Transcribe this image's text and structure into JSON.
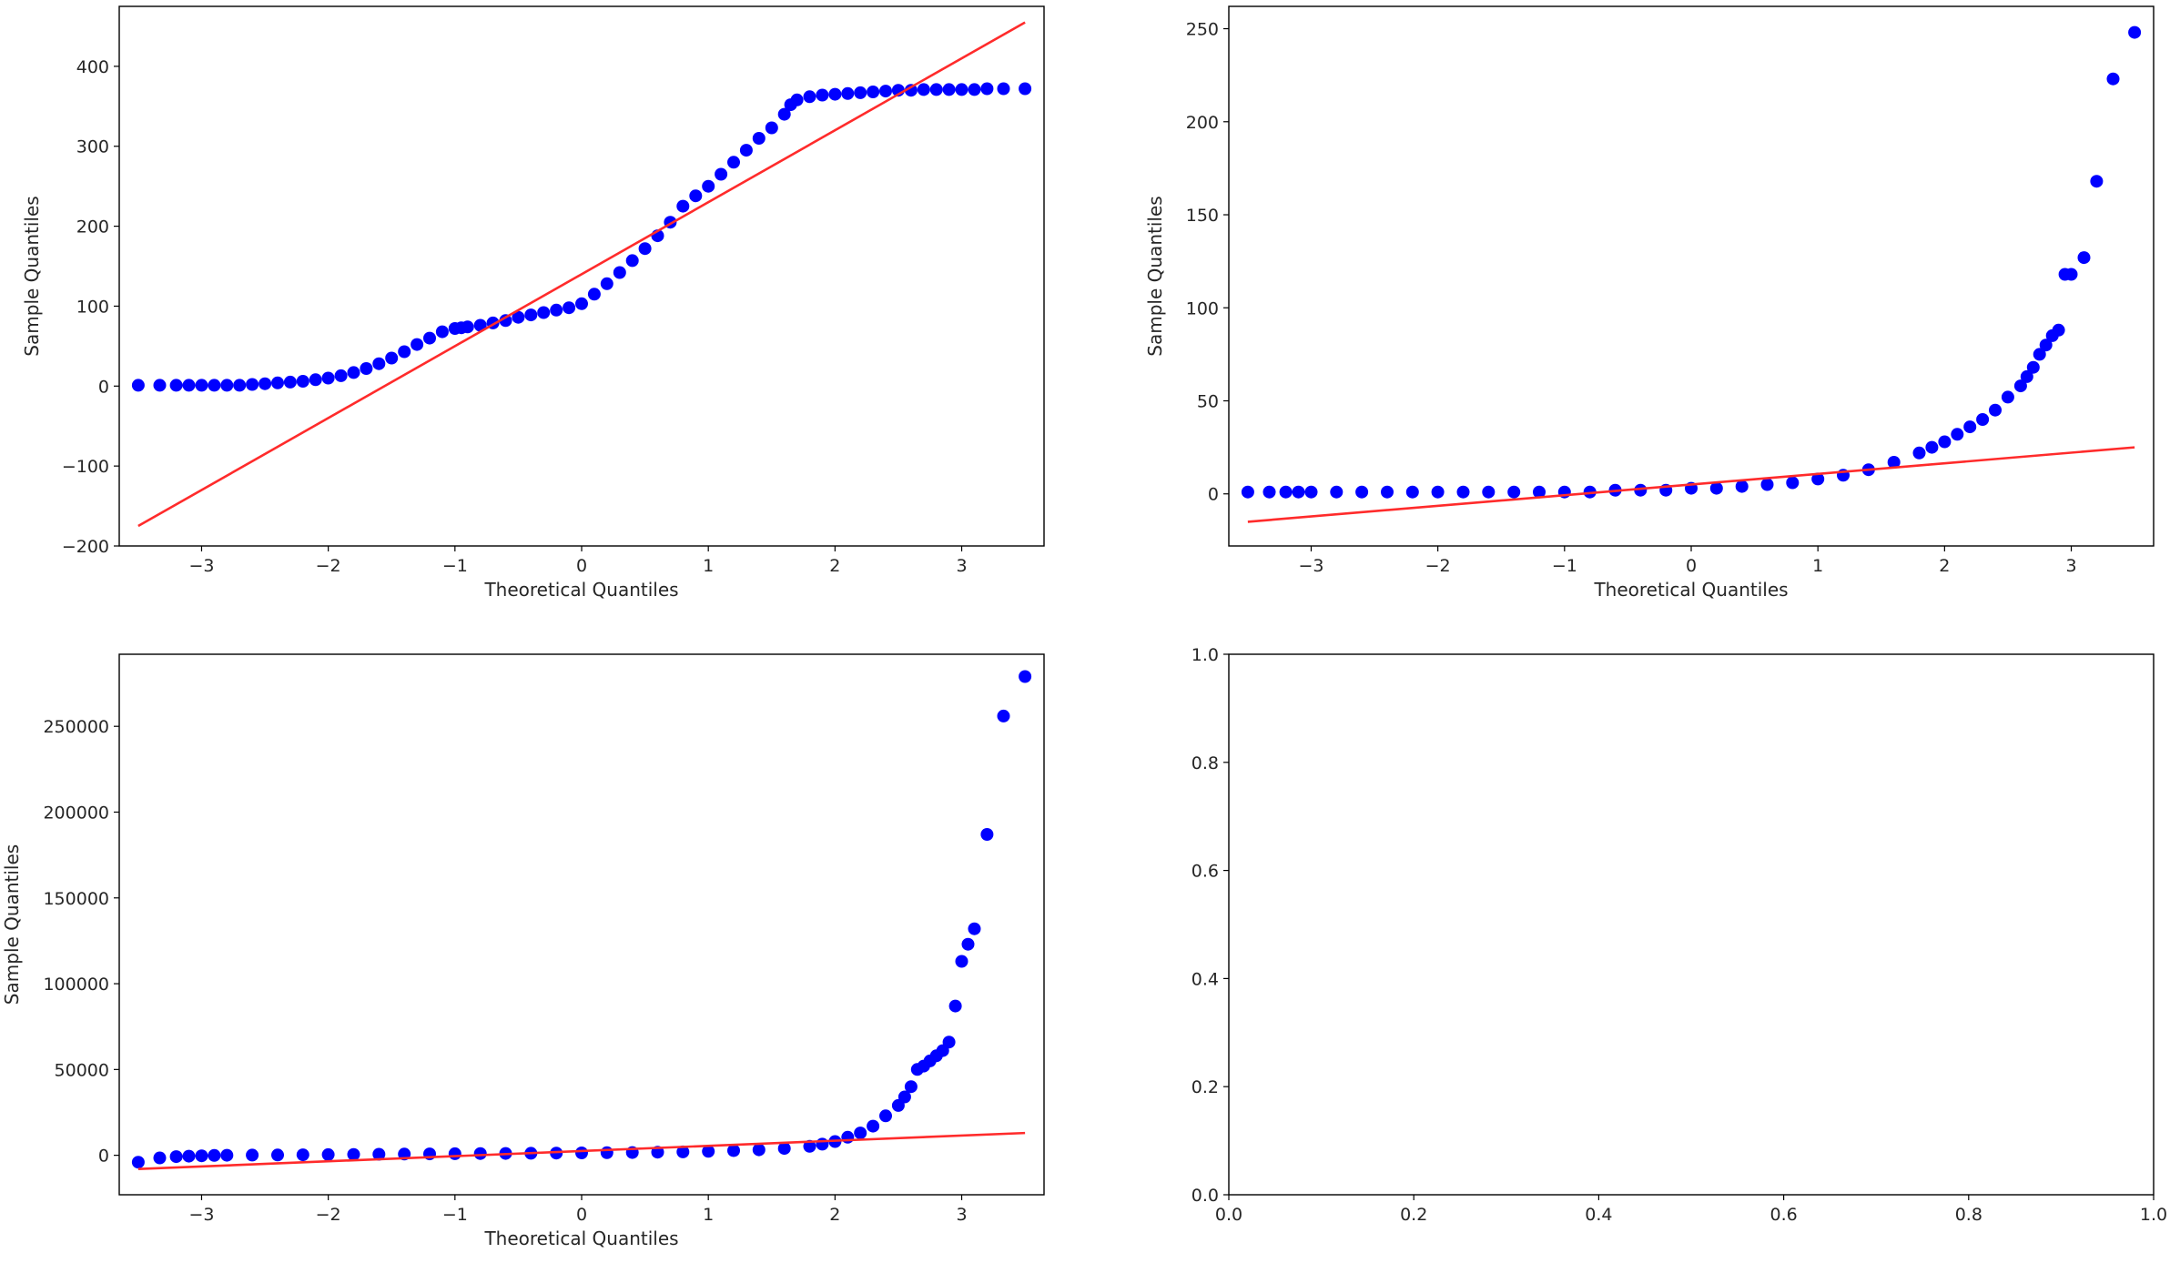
{
  "figure": {
    "marker_color": "#0000ff",
    "line_color": "#ff2b2b"
  },
  "chart_data": [
    {
      "type": "scatter",
      "subtype": "qq-plot",
      "title": "",
      "xlabel": "Theoretical Quantiles",
      "ylabel": "Sample Quantiles",
      "xlim": [
        -3.65,
        3.65
      ],
      "ylim": [
        -200,
        475
      ],
      "xticks": [
        -3,
        -2,
        -1,
        0,
        1,
        2,
        3
      ],
      "xtick_labels": [
        "−3",
        "−2",
        "−1",
        "0",
        "1",
        "2",
        "3"
      ],
      "yticks": [
        -200,
        -100,
        0,
        100,
        200,
        300,
        400
      ],
      "ytick_labels": [
        "−200",
        "−100",
        "0",
        "100",
        "200",
        "300",
        "400"
      ],
      "grid": false,
      "reference_line": {
        "x": [
          -3.5,
          3.5
        ],
        "y": [
          -175,
          455
        ]
      },
      "points": {
        "x": [
          -3.5,
          -3.33,
          -3.2,
          -3.1,
          -3.0,
          -2.9,
          -2.8,
          -2.7,
          -2.6,
          -2.5,
          -2.4,
          -2.3,
          -2.2,
          -2.1,
          -2.0,
          -1.9,
          -1.8,
          -1.7,
          -1.6,
          -1.5,
          -1.4,
          -1.3,
          -1.2,
          -1.1,
          -1.0,
          -0.95,
          -0.9,
          -0.8,
          -0.7,
          -0.6,
          -0.5,
          -0.4,
          -0.3,
          -0.2,
          -0.1,
          0.0,
          0.1,
          0.2,
          0.3,
          0.4,
          0.5,
          0.6,
          0.7,
          0.8,
          0.9,
          1.0,
          1.1,
          1.2,
          1.3,
          1.4,
          1.5,
          1.6,
          1.65,
          1.7,
          1.8,
          1.9,
          2.0,
          2.1,
          2.2,
          2.3,
          2.4,
          2.5,
          2.6,
          2.7,
          2.8,
          2.9,
          3.0,
          3.1,
          3.2,
          3.33,
          3.5
        ],
        "y": [
          1,
          1,
          1,
          1,
          1,
          1,
          1,
          1,
          2,
          3,
          4,
          5,
          6,
          8,
          10,
          13,
          17,
          22,
          28,
          35,
          43,
          52,
          60,
          68,
          72,
          73,
          74,
          76,
          79,
          82,
          86,
          89,
          92,
          95,
          98,
          103,
          115,
          128,
          142,
          157,
          172,
          188,
          205,
          225,
          238,
          250,
          265,
          280,
          295,
          310,
          323,
          340,
          352,
          358,
          362,
          364,
          365,
          366,
          367,
          368,
          369,
          370,
          370,
          371,
          371,
          371,
          371,
          371,
          372,
          372,
          372
        ]
      }
    },
    {
      "type": "scatter",
      "subtype": "qq-plot",
      "title": "",
      "xlabel": "Theoretical Quantiles",
      "ylabel": "Sample Quantiles",
      "xlim": [
        -3.65,
        3.65
      ],
      "ylim": [
        -28,
        262
      ],
      "xticks": [
        -3,
        -2,
        -1,
        0,
        1,
        2,
        3
      ],
      "xtick_labels": [
        "−3",
        "−2",
        "−1",
        "0",
        "1",
        "2",
        "3"
      ],
      "yticks": [
        0,
        50,
        100,
        150,
        200,
        250
      ],
      "ytick_labels": [
        "0",
        "50",
        "100",
        "150",
        "200",
        "250"
      ],
      "grid": false,
      "reference_line": {
        "x": [
          -3.5,
          3.5
        ],
        "y": [
          -15,
          25
        ]
      },
      "points": {
        "x": [
          -3.5,
          -3.33,
          -3.2,
          -3.1,
          -3.0,
          -2.8,
          -2.6,
          -2.4,
          -2.2,
          -2.0,
          -1.8,
          -1.6,
          -1.4,
          -1.2,
          -1.0,
          -0.8,
          -0.6,
          -0.4,
          -0.2,
          0.0,
          0.2,
          0.4,
          0.6,
          0.8,
          1.0,
          1.2,
          1.4,
          1.6,
          1.8,
          1.9,
          2.0,
          2.1,
          2.2,
          2.3,
          2.4,
          2.5,
          2.6,
          2.65,
          2.7,
          2.75,
          2.8,
          2.85,
          2.9,
          2.95,
          3.0,
          3.1,
          3.2,
          3.33,
          3.5
        ],
        "y": [
          1,
          1,
          1,
          1,
          1,
          1,
          1,
          1,
          1,
          1,
          1,
          1,
          1,
          1,
          1,
          1,
          2,
          2,
          2,
          3,
          3,
          4,
          5,
          6,
          8,
          10,
          13,
          17,
          22,
          25,
          28,
          32,
          36,
          40,
          45,
          52,
          58,
          63,
          68,
          75,
          80,
          85,
          88,
          118,
          118,
          127,
          168,
          223,
          248
        ]
      }
    },
    {
      "type": "scatter",
      "subtype": "qq-plot",
      "title": "",
      "xlabel": "Theoretical Quantiles",
      "ylabel": "Sample Quantiles",
      "xlim": [
        -3.65,
        3.65
      ],
      "ylim": [
        -23000,
        292000
      ],
      "xticks": [
        -3,
        -2,
        -1,
        0,
        1,
        2,
        3
      ],
      "xtick_labels": [
        "−3",
        "−2",
        "−1",
        "0",
        "1",
        "2",
        "3"
      ],
      "yticks": [
        0,
        50000,
        100000,
        150000,
        200000,
        250000
      ],
      "ytick_labels": [
        "0",
        "50000",
        "100000",
        "150000",
        "200000",
        "250000"
      ],
      "grid": false,
      "reference_line": {
        "x": [
          -3.5,
          3.5
        ],
        "y": [
          -8000,
          13000
        ]
      },
      "points": {
        "x": [
          -3.5,
          -3.33,
          -3.2,
          -3.1,
          -3.0,
          -2.9,
          -2.8,
          -2.6,
          -2.4,
          -2.2,
          -2.0,
          -1.8,
          -1.6,
          -1.4,
          -1.2,
          -1.0,
          -0.8,
          -0.6,
          -0.4,
          -0.2,
          0.0,
          0.2,
          0.4,
          0.6,
          0.8,
          1.0,
          1.2,
          1.4,
          1.6,
          1.8,
          1.9,
          2.0,
          2.1,
          2.2,
          2.3,
          2.4,
          2.5,
          2.55,
          2.6,
          2.65,
          2.7,
          2.75,
          2.8,
          2.85,
          2.9,
          2.95,
          3.0,
          3.05,
          3.1,
          3.2,
          3.33,
          3.5
        ],
        "y": [
          -4000,
          -1500,
          -800,
          -500,
          -300,
          -100,
          0,
          100,
          200,
          300,
          400,
          500,
          600,
          700,
          800,
          900,
          1000,
          1100,
          1200,
          1300,
          1400,
          1500,
          1600,
          1800,
          2000,
          2300,
          2700,
          3200,
          4000,
          5200,
          6500,
          8000,
          10500,
          13000,
          17000,
          23000,
          29000,
          34000,
          40000,
          50000,
          52000,
          55000,
          58000,
          61000,
          66000,
          87000,
          113000,
          123000,
          132000,
          187000,
          256000,
          279000
        ]
      }
    },
    {
      "type": "scatter",
      "title": "",
      "xlabel": "",
      "ylabel": "",
      "xlim": [
        0,
        1
      ],
      "ylim": [
        0,
        1
      ],
      "xticks": [
        0,
        0.2,
        0.4,
        0.6,
        0.8,
        1.0
      ],
      "xtick_labels": [
        "0.0",
        "0.2",
        "0.4",
        "0.6",
        "0.8",
        "1.0"
      ],
      "yticks": [
        0,
        0.2,
        0.4,
        0.6,
        0.8,
        1.0
      ],
      "ytick_labels": [
        "0.0",
        "0.2",
        "0.4",
        "0.6",
        "0.8",
        "1.0"
      ],
      "grid": false,
      "points": {
        "x": [],
        "y": []
      }
    }
  ]
}
